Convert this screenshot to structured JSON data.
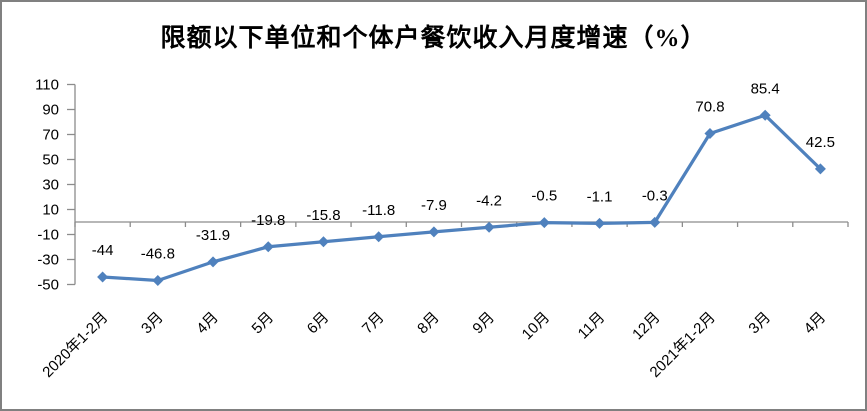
{
  "chart_data": {
    "type": "line",
    "title": "限额以下单位和个体户餐饮收入月度增速（%）",
    "categories": [
      "2020年1-2月",
      "3月",
      "4月",
      "5月",
      "6月",
      "7月",
      "8月",
      "9月",
      "10月",
      "11月",
      "12月",
      "2021年1-2月",
      "3月",
      "4月"
    ],
    "values": [
      -44,
      -46.8,
      -31.9,
      -19.8,
      -15.8,
      -11.8,
      -7.9,
      -4.2,
      -0.5,
      -1.1,
      -0.3,
      70.8,
      85.4,
      42.5
    ],
    "data_labels": [
      "-44",
      "-46.8",
      "-31.9",
      "-19.8",
      "-15.8",
      "-11.8",
      "-7.9",
      "-4.2",
      "-0.5",
      "-1.1",
      "-0.3",
      "70.8",
      "85.4",
      "42.5"
    ],
    "y_ticks": [
      110,
      90,
      70,
      50,
      30,
      10,
      -10,
      -30,
      -50
    ],
    "ylim": [
      -50,
      110
    ],
    "xlabel": "",
    "ylabel": "",
    "grid": false,
    "legend": false,
    "marker": "diamond"
  },
  "colors": {
    "series": "#4F81BD",
    "axis": "#8C8C8C",
    "label_text": "#000000",
    "frame_border": "#808080",
    "background": "#FFFFFF"
  }
}
